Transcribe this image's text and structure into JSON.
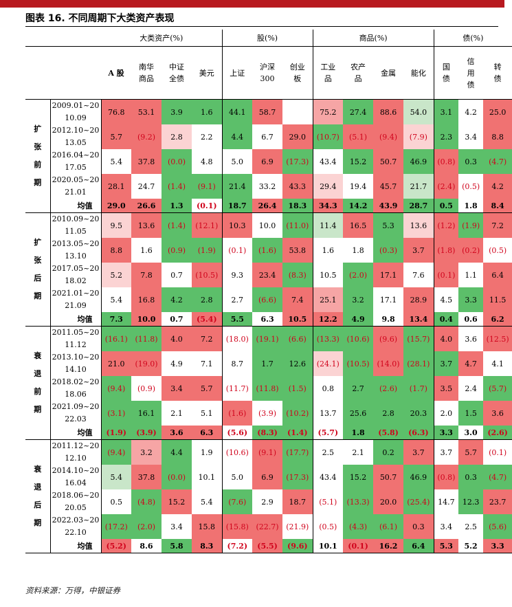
{
  "title": "图表 16.  不同周期下大类资产表现",
  "source": "资料来源：万得，中银证券",
  "groups": [
    {
      "label": "大类资产(%)",
      "span": 4
    },
    {
      "label": "股(%)",
      "span": 3
    },
    {
      "label": "商品(%)",
      "span": 4
    },
    {
      "label": "债(%)",
      "span": 3
    }
  ],
  "columns": [
    {
      "lines": [
        "A 股"
      ]
    },
    {
      "lines": [
        "南华",
        "商品"
      ]
    },
    {
      "lines": [
        "中证",
        "全债"
      ]
    },
    {
      "lines": [
        "美元"
      ]
    },
    {
      "lines": [
        "上证"
      ]
    },
    {
      "lines": [
        "沪深",
        "300"
      ]
    },
    {
      "lines": [
        "创业",
        "板"
      ]
    },
    {
      "lines": [
        "工业",
        "品"
      ]
    },
    {
      "lines": [
        "农产",
        "品"
      ]
    },
    {
      "lines": [
        "金属"
      ]
    },
    {
      "lines": [
        "能化"
      ]
    },
    {
      "lines": [
        "国",
        "债"
      ]
    },
    {
      "lines": [
        "信",
        "用",
        "债"
      ]
    },
    {
      "lines": [
        "转",
        "债"
      ]
    }
  ],
  "colors": {
    "deep_red": "#f07272",
    "mid_red": "#f6a5a5",
    "light_red": "#fbd3d3",
    "white": "#ffffff",
    "light_green": "#c9e6c9",
    "mid_green": "#8fd08f",
    "deep_green": "#5cbf6a",
    "neg_text": "#d0021b",
    "top_bar": "#b8191f"
  },
  "sections": [
    {
      "label": "扩张前期",
      "rows": [
        {
          "period": "2009.01~2010.09",
          "values": [
            "76.8",
            "53.1",
            "3.9",
            "1.6",
            "44.1",
            "58.7",
            "",
            "75.2",
            "27.4",
            "88.6",
            "54.0",
            "3.1",
            "4.2",
            "25.0"
          ],
          "colors": [
            "R",
            "R",
            "G",
            "G",
            "G",
            "R",
            "W",
            "r",
            "G",
            "R",
            "g",
            "G",
            "W",
            "R"
          ]
        },
        {
          "period": "2012.10~2013.05",
          "values": [
            "5.7",
            "(9.2)",
            "2.8",
            "2.2",
            "4.4",
            "6.7",
            "29.0",
            "(10.7)",
            "(5.1)",
            "(9.4)",
            "(7.9)",
            "2.3",
            "3.4",
            "8.8"
          ],
          "colors": [
            "R",
            "R",
            "l",
            "W",
            "G",
            "W",
            "R",
            "G",
            "R",
            "R",
            "l",
            "G",
            "W",
            "R"
          ]
        },
        {
          "period": "2016.04~2017.05",
          "values": [
            "5.4",
            "37.8",
            "(0.0)",
            "4.8",
            "5.0",
            "6.9",
            "(17.3)",
            "43.4",
            "15.2",
            "50.7",
            "46.9",
            "(0.8)",
            "0.3",
            "(4.7)"
          ],
          "colors": [
            "W",
            "R",
            "G",
            "W",
            "W",
            "R",
            "G",
            "W",
            "G",
            "R",
            "G",
            "R",
            "G",
            "G"
          ]
        },
        {
          "period": "2020.05~2021.01",
          "values": [
            "28.1",
            "24.7",
            "(1.4)",
            "(9.1)",
            "21.4",
            "33.2",
            "43.3",
            "29.4",
            "19.4",
            "45.7",
            "21.7",
            "(2.4)",
            "(0.5)",
            "4.2"
          ],
          "colors": [
            "R",
            "W",
            "G",
            "G",
            "G",
            "W",
            "R",
            "l",
            "W",
            "R",
            "g",
            "R",
            "W",
            "R"
          ]
        }
      ],
      "avg": {
        "label": "均值",
        "values": [
          "29.0",
          "26.6",
          "1.3",
          "(0.1)",
          "18.7",
          "26.4",
          "18.3",
          "34.3",
          "14.2",
          "43.9",
          "28.7",
          "0.5",
          "1.8",
          "8.4"
        ],
        "colors": [
          "R",
          "R",
          "G",
          "W",
          "G",
          "R",
          "G",
          "R",
          "G",
          "R",
          "G",
          "G",
          "W",
          "R"
        ]
      }
    },
    {
      "label": "扩张后期",
      "rows": [
        {
          "period": "2010.09~2011.05",
          "values": [
            "9.5",
            "13.6",
            "(1.4)",
            "(12.1)",
            "10.3",
            "10.0",
            "(11.0)",
            "11.4",
            "16.5",
            "5.3",
            "13.6",
            "(1.2)",
            "(1.9)",
            "7.2"
          ],
          "colors": [
            "l",
            "R",
            "G",
            "R",
            "R",
            "W",
            "G",
            "g",
            "R",
            "G",
            "l",
            "R",
            "G",
            "R"
          ]
        },
        {
          "period": "2013.05~2013.10",
          "values": [
            "8.8",
            "1.6",
            "(0.9)",
            "(1.9)",
            "(0.1)",
            "(1.6)",
            "53.8",
            "1.6",
            "1.8",
            "(0.3)",
            "3.7",
            "(1.8)",
            "(0.2)",
            "(0.5)"
          ],
          "colors": [
            "R",
            "W",
            "G",
            "G",
            "W",
            "G",
            "R",
            "W",
            "W",
            "G",
            "R",
            "R",
            "R",
            "W"
          ]
        },
        {
          "period": "2017.05~2018.02",
          "values": [
            "5.2",
            "7.8",
            "0.7",
            "(10.5)",
            "9.3",
            "23.4",
            "(8.3)",
            "10.5",
            "(2.0)",
            "17.1",
            "7.6",
            "(0.1)",
            "1.1",
            "6.4"
          ],
          "colors": [
            "l",
            "R",
            "W",
            "R",
            "W",
            "R",
            "G",
            "W",
            "G",
            "R",
            "W",
            "R",
            "W",
            "R"
          ]
        },
        {
          "period": "2021.01~2021.09",
          "values": [
            "5.4",
            "16.8",
            "4.2",
            "2.8",
            "2.7",
            "(6.6)",
            "7.4",
            "25.1",
            "3.2",
            "17.1",
            "28.9",
            "4.5",
            "3.3",
            "11.5"
          ],
          "colors": [
            "W",
            "R",
            "G",
            "G",
            "W",
            "G",
            "R",
            "r",
            "G",
            "W",
            "R",
            "W",
            "G",
            "R"
          ]
        }
      ],
      "avg": {
        "label": "均值",
        "values": [
          "7.3",
          "10.0",
          "0.7",
          "(5.4)",
          "5.5",
          "6.3",
          "10.5",
          "12.2",
          "4.9",
          "9.8",
          "13.4",
          "0.4",
          "0.6",
          "6.2"
        ],
        "colors": [
          "G",
          "R",
          "W",
          "R",
          "G",
          "W",
          "R",
          "R",
          "G",
          "W",
          "R",
          "G",
          "W",
          "R"
        ]
      }
    },
    {
      "label": "衰退前期",
      "rows": [
        {
          "period": "2011.05~2011.12",
          "values": [
            "(16.1)",
            "(11.8)",
            "4.0",
            "7.2",
            "(18.0)",
            "(19.1)",
            "(6.6)",
            "(13.3)",
            "(10.6)",
            "(9.6)",
            "(15.7)",
            "4.0",
            "3.6",
            "(12.5)"
          ],
          "colors": [
            "G",
            "G",
            "R",
            "R",
            "W",
            "G",
            "G",
            "G",
            "G",
            "R",
            "G",
            "R",
            "W",
            "R"
          ]
        },
        {
          "period": "2013.10~2014.10",
          "values": [
            "21.0",
            "(19.0)",
            "4.9",
            "7.1",
            "8.7",
            "1.7",
            "12.6",
            "(24.1)",
            "(10.5)",
            "(14.0)",
            "(28.1)",
            "3.7",
            "4.7",
            "4.1"
          ],
          "colors": [
            "R",
            "R",
            "W",
            "W",
            "W",
            "G",
            "G",
            "l",
            "G",
            "R",
            "G",
            "G",
            "R",
            "W"
          ]
        },
        {
          "period": "2018.02~2018.06",
          "values": [
            "(9.4)",
            "(0.9)",
            "3.4",
            "5.7",
            "(11.7)",
            "(11.8)",
            "(1.5)",
            "0.8",
            "2.7",
            "(2.6)",
            "(1.7)",
            "3.5",
            "2.4",
            "(5.7)"
          ],
          "colors": [
            "G",
            "W",
            "R",
            "R",
            "W",
            "G",
            "G",
            "W",
            "G",
            "G",
            "G",
            "R",
            "W",
            "G"
          ]
        },
        {
          "period": "2021.09~2022.03",
          "values": [
            "(3.1)",
            "16.1",
            "2.1",
            "5.1",
            "(1.6)",
            "(3.9)",
            "(10.2)",
            "13.7",
            "25.6",
            "2.8",
            "20.3",
            "2.0",
            "1.5",
            "3.6"
          ],
          "colors": [
            "G",
            "G",
            "W",
            "W",
            "R",
            "W",
            "G",
            "W",
            "G",
            "G",
            "G",
            "W",
            "G",
            "R"
          ]
        }
      ],
      "avg": {
        "label": "均值",
        "values": [
          "(1.9)",
          "(3.9)",
          "3.6",
          "6.3",
          "(5.6)",
          "(8.3)",
          "(1.4)",
          "(5.7)",
          "1.8",
          "(5.8)",
          "(6.3)",
          "3.3",
          "3.0",
          "(2.6)"
        ],
        "colors": [
          "G",
          "G",
          "R",
          "R",
          "W",
          "G",
          "G",
          "W",
          "G",
          "G",
          "G",
          "G",
          "W",
          "G"
        ]
      }
    },
    {
      "label": "衰退后期",
      "rows": [
        {
          "period": "2011.12~2012.10",
          "values": [
            "(9.4)",
            "3.2",
            "4.4",
            "1.9",
            "(10.6)",
            "(9.1)",
            "(17.7)",
            "2.5",
            "2.1",
            "0.2",
            "3.7",
            "3.7",
            "5.7",
            "(0.1)"
          ],
          "colors": [
            "G",
            "r",
            "G",
            "W",
            "W",
            "R",
            "G",
            "W",
            "W",
            "G",
            "R",
            "W",
            "R",
            "W"
          ]
        },
        {
          "period": "2014.10~2016.04",
          "values": [
            "5.4",
            "37.8",
            "(0.0)",
            "10.1",
            "5.0",
            "6.9",
            "(17.3)",
            "43.4",
            "15.2",
            "50.7",
            "46.9",
            "(0.8)",
            "0.3",
            "(4.7)"
          ],
          "colors": [
            "g",
            "R",
            "G",
            "W",
            "W",
            "R",
            "G",
            "W",
            "G",
            "R",
            "G",
            "R",
            "G",
            "G"
          ]
        },
        {
          "period": "2018.06~2020.05",
          "values": [
            "0.5",
            "(4.8)",
            "15.2",
            "5.4",
            "(7.6)",
            "2.9",
            "18.7",
            "(5.1)",
            "(13.3)",
            "20.0",
            "(25.4)",
            "14.7",
            "12.3",
            "23.7"
          ],
          "colors": [
            "W",
            "G",
            "R",
            "W",
            "G",
            "W",
            "R",
            "W",
            "G",
            "R",
            "G",
            "W",
            "G",
            "R"
          ]
        },
        {
          "period": "2022.03~2022.10",
          "values": [
            "(17.2)",
            "(2.0)",
            "3.4",
            "15.8",
            "(15.8)",
            "(22.7)",
            "(21.9)",
            "(0.5)",
            "(4.3)",
            "(6.1)",
            "0.3",
            "3.4",
            "2.5",
            "(5.6)"
          ],
          "colors": [
            "G",
            "G",
            "W",
            "R",
            "R",
            "R",
            "W",
            "W",
            "G",
            "G",
            "R",
            "W",
            "W",
            "G"
          ]
        }
      ],
      "avg": {
        "label": "均值",
        "values": [
          "(5.2)",
          "8.6",
          "5.8",
          "8.3",
          "(7.2)",
          "(5.5)",
          "(9.6)",
          "10.1",
          "(0.1)",
          "16.2",
          "6.4",
          "5.3",
          "5.2",
          "3.3"
        ],
        "colors": [
          "R",
          "W",
          "G",
          "R",
          "W",
          "R",
          "G",
          "W",
          "R",
          "R",
          "G",
          "R",
          "W",
          "R"
        ]
      }
    }
  ]
}
